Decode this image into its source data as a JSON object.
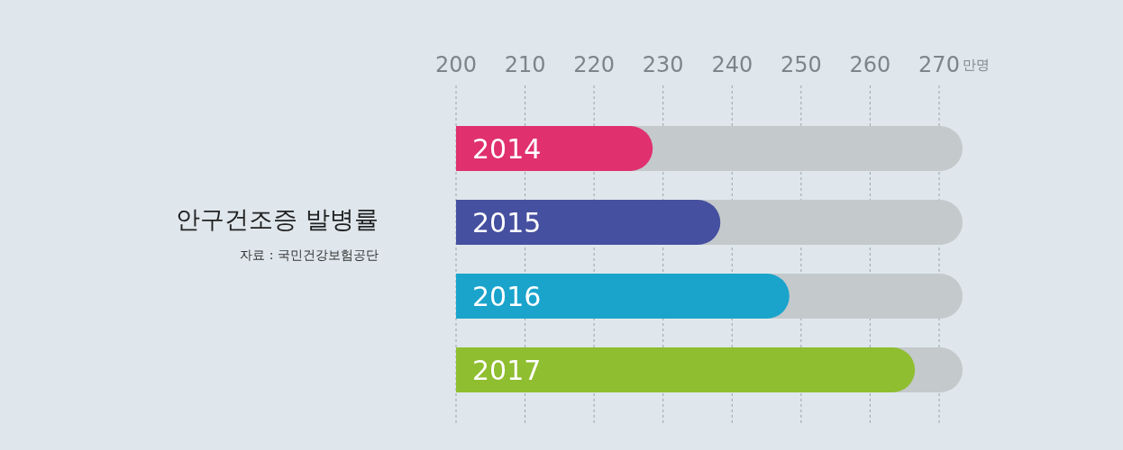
{
  "chart_data": {
    "type": "bar",
    "orientation": "horizontal",
    "title": "안구건조증 발병률",
    "annotations": [
      "자료 : 국민건강보험공단"
    ],
    "xlabel": "만명",
    "categories": [
      "2014",
      "2015",
      "2016",
      "2017"
    ],
    "values": [
      228.5,
      238.3,
      248.3,
      266.5
    ],
    "colors": [
      "#e0306e",
      "#4650a0",
      "#1aa4cc",
      "#8fbe30"
    ],
    "xlim": [
      200,
      273.4
    ],
    "xticks": [
      200,
      210,
      220,
      230,
      240,
      250,
      260,
      270
    ],
    "grid": "x"
  }
}
